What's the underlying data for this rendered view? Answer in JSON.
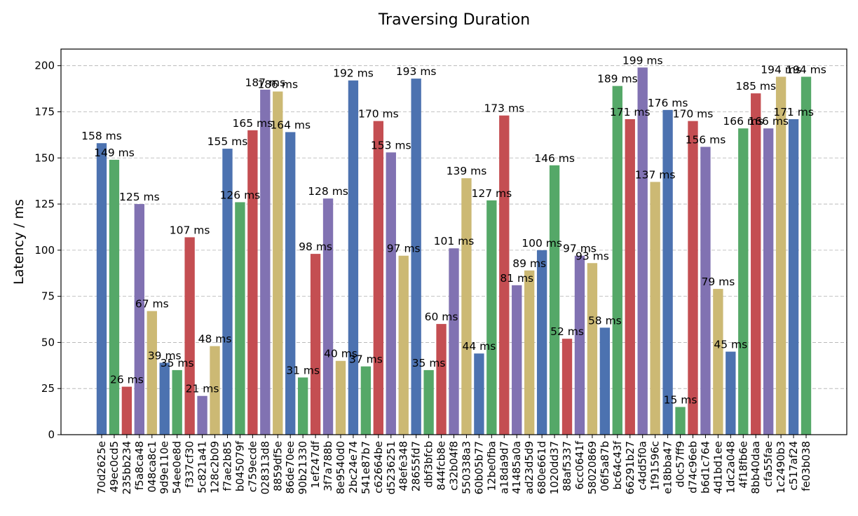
{
  "chart_data": {
    "type": "bar",
    "title": "Traversing Duration",
    "xlabel": "",
    "ylabel": "Latency / ms",
    "ylim": [
      0,
      209
    ],
    "yticks": [
      0,
      25,
      50,
      75,
      100,
      125,
      150,
      175,
      200
    ],
    "grid": "y-dashed",
    "label_suffix": " ms",
    "colors": [
      "#4c72b0",
      "#55a868",
      "#c44e52",
      "#8172b2",
      "#ccb974"
    ],
    "categories": [
      "70d2625e",
      "49ec0cd5",
      "235bb234",
      "f5a8ca48",
      "048ca8c1",
      "9d9e110e",
      "54ee0e8d",
      "f337cf30",
      "5c821a41",
      "128c2b09",
      "f7ae2b85",
      "b04507 9f",
      "c759ecde",
      "028313d8",
      "8859df5e",
      "86de70ee",
      "90b21330",
      "1ef247df",
      "3f7a788b",
      "8e9540d0",
      "2bc24e74",
      "541e87b7",
      "c62664be",
      "d5236251",
      "48efe348",
      "28655fd7",
      "dbf3bfcb",
      "844fcb8e",
      "c32b04f8",
      "550338a3",
      "60b05b77",
      "12be0fba",
      "a18da9d7",
      "41485a0a",
      "ad23d5d9",
      "680e661d",
      "1020dd37",
      "88af5337",
      "6cc0641f",
      "58020869",
      "06f5a87b",
      "bc64c43f",
      "66291b27",
      "c4dd5f0a",
      "1f91596c",
      "e18bba47",
      "d0c57ff9",
      "d74c96eb",
      "b6d1c764",
      "4d1bd1ee",
      "1dc2a048",
      "4f18fb6e",
      "8bb40daa",
      "cfa55fae",
      "1c2490b3",
      "c517af24",
      "fe03b038"
    ],
    "values": [
      158,
      149,
      26,
      125,
      67,
      39,
      35,
      107,
      21,
      48,
      155,
      126,
      165,
      187,
      186,
      164,
      31,
      98,
      128,
      40,
      192,
      37,
      170,
      153,
      97,
      193,
      35,
      60,
      101,
      139,
      44,
      127,
      173,
      81,
      89,
      100,
      146,
      52,
      97,
      93,
      58,
      189,
      171,
      199,
      137,
      176,
      15,
      170,
      156,
      79,
      45,
      166,
      185,
      166,
      194,
      171,
      194
    ]
  }
}
